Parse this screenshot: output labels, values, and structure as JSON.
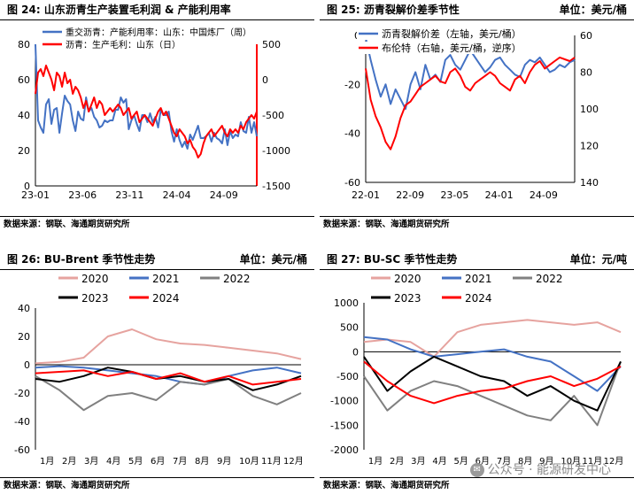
{
  "watermark": "公众号 · 能源研发中心",
  "panels": [
    {
      "label": "图 24:  山东沥青生产装置毛利润 & 产能利用率",
      "unit": "",
      "source": "数据来源：钢联、海通期货研究所",
      "chart_data": {
        "type": "line",
        "xticks": [
          "23-01",
          "23-06",
          "23-11",
          "24-04",
          "24-09"
        ],
        "ylim": [
          0,
          80
        ],
        "y2lim": [
          -1500,
          500
        ],
        "yticks": [
          0,
          20,
          40,
          60,
          80
        ],
        "y2ticks": [
          500,
          0,
          -500,
          -1000,
          -1500
        ],
        "legend_position": "top-left",
        "series": [
          {
            "name": "重交沥青：产能利用率：山东：中国炼厂（周）",
            "axis": "left",
            "color": "#4472c4",
            "values": [
              80,
              37,
              33,
              30,
              46,
              49,
              35,
              43,
              44,
              30,
              41,
              51,
              48,
              46,
              37,
              31,
              42,
              38,
              37,
              50,
              42,
              44,
              39,
              37,
              33,
              34,
              37,
              36,
              37,
              37,
              43,
              43,
              50,
              47,
              49,
              32,
              37,
              40,
              35,
              31,
              40,
              40,
              36,
              41,
              36,
              39,
              33,
              43,
              40,
              40,
              42,
              31,
              25,
              32,
              26,
              22,
              25,
              21,
              29,
              26,
              30,
              34,
              27,
              27,
              28,
              30,
              25,
              30,
              27,
              26,
              24,
              32,
              23,
              31,
              27,
              29,
              28,
              36,
              31,
              30,
              39,
              30,
              36,
              28
            ]
          },
          {
            "name": "沥青：生产毛利：山东（日）",
            "axis": "right",
            "color": "#ff0000",
            "values": [
              -200,
              100,
              150,
              50,
              200,
              100,
              0,
              -150,
              100,
              50,
              -100,
              100,
              -50,
              0,
              -200,
              -100,
              -150,
              -250,
              -400,
              -300,
              -450,
              -350,
              -250,
              -400,
              -300,
              -350,
              -500,
              -450,
              -400,
              -450,
              -400,
              -350,
              -400,
              -500,
              -450,
              -400,
              -550,
              -500,
              -450,
              -600,
              -550,
              -500,
              -550,
              -600,
              -650,
              -550,
              -450,
              -400,
              -500,
              -450,
              -550,
              -650,
              -750,
              -800,
              -700,
              -750,
              -800,
              -900,
              -850,
              -950,
              -1000,
              -1100,
              -1050,
              -900,
              -800,
              -750,
              -700,
              -800,
              -750,
              -700,
              -650,
              -750,
              -800,
              -700,
              -750,
              -700,
              -750,
              -650,
              -700,
              -600,
              -550,
              -500,
              -550,
              -450
            ]
          }
        ]
      }
    },
    {
      "label": "图 25:   沥青裂解价差季节性",
      "unit": "单位：美元/桶",
      "source": "数据来源：钢联、海通期货研究所",
      "chart_data": {
        "type": "line",
        "xticks": [
          "22-01",
          "22-09",
          "23-05",
          "24-01",
          "24-09"
        ],
        "ylim": [
          -60,
          0
        ],
        "yticks": [
          0,
          -20,
          -40,
          -60
        ],
        "y2lim": [
          140,
          60
        ],
        "y2ticks": [
          60,
          80,
          100,
          120,
          140
        ],
        "y2_reversed": true,
        "legend_position": "top-left",
        "series": [
          {
            "name": "沥青裂解价差（左轴，美元/桶）",
            "axis": "left",
            "color": "#4472c4",
            "values": [
              -1,
              -10,
              -18,
              -25,
              -20,
              -28,
              -22,
              -26,
              -30,
              -20,
              -15,
              -22,
              -12,
              -18,
              -16,
              -19,
              -10,
              -8,
              -12,
              -14,
              -10,
              -6,
              -9,
              -12,
              -15,
              -13,
              -10,
              -9,
              -12,
              -14,
              -16,
              -17,
              -12,
              -10,
              -11,
              -9,
              -12,
              -15,
              -14,
              -12,
              -13,
              -11,
              -10
            ]
          },
          {
            "name": "布伦特（右轴，美元/桶，逆序）",
            "axis": "right",
            "color": "#ff0000",
            "values": [
              78,
              95,
              104,
              110,
              118,
              122,
              115,
              105,
              98,
              96,
              92,
              88,
              86,
              84,
              82,
              85,
              86,
              80,
              78,
              82,
              88,
              90,
              86,
              84,
              82,
              80,
              82,
              86,
              88,
              90,
              84,
              82,
              86,
              80,
              76,
              74,
              78,
              76,
              74,
              72,
              73,
              74,
              72
            ]
          }
        ]
      }
    },
    {
      "label": "图 26:   BU-Brent 季节性走势",
      "unit": "单位：美元/桶",
      "source": "数据来源：钢联、海通期货研究所",
      "chart_data": {
        "type": "line",
        "categories": [
          "1月",
          "2月",
          "3月",
          "4月",
          "5月",
          "6月",
          "7月",
          "8月",
          "9月",
          "10月",
          "11月",
          "12月"
        ],
        "ylim": [
          -60,
          40
        ],
        "yticks": [
          40,
          20,
          0,
          -20,
          -40,
          -60
        ],
        "legend_position": "top",
        "series": [
          {
            "name": "2020",
            "color": "#e6a39f",
            "values": [
              1,
              2,
              5,
              20,
              25,
              18,
              15,
              14,
              12,
              10,
              8,
              4
            ]
          },
          {
            "name": "2021",
            "color": "#4472c4",
            "values": [
              -2,
              -1,
              -2,
              -4,
              -6,
              -8,
              -12,
              -14,
              -8,
              -4,
              -2,
              -6
            ]
          },
          {
            "name": "2022",
            "color": "#808080",
            "values": [
              -8,
              -18,
              -32,
              -22,
              -20,
              -25,
              -12,
              -14,
              -10,
              -22,
              -28,
              -20
            ]
          },
          {
            "name": "2023",
            "color": "#000000",
            "values": [
              -10,
              -12,
              -8,
              -2,
              -5,
              -10,
              -8,
              -12,
              -10,
              -18,
              -14,
              -8
            ]
          },
          {
            "name": "2024",
            "color": "#ff0000",
            "values": [
              -6,
              -5,
              -4,
              -8,
              -5,
              -10,
              -6,
              -12,
              -8,
              -14,
              -12,
              -10
            ]
          }
        ]
      }
    },
    {
      "label": "图 27:   BU-SC 季节性走势",
      "unit": "单位：元/吨",
      "source": "数据来源：钢联、海通期货研究所",
      "chart_data": {
        "type": "line",
        "categories": [
          "1月",
          "2月",
          "3月",
          "4月",
          "5月",
          "6月",
          "7月",
          "8月",
          "9月",
          "10月",
          "11月",
          "12月"
        ],
        "ylim": [
          -2000,
          1000
        ],
        "yticks": [
          1000,
          500,
          0,
          -500,
          -1000,
          -1500,
          -2000
        ],
        "legend_position": "top",
        "series": [
          {
            "name": "2020",
            "color": "#e6a39f",
            "values": [
              200,
              250,
              200,
              -100,
              400,
              550,
              600,
              650,
              600,
              550,
              600,
              400
            ]
          },
          {
            "name": "2021",
            "color": "#4472c4",
            "values": [
              300,
              250,
              50,
              -100,
              -50,
              0,
              50,
              -100,
              -200,
              -500,
              -800,
              -300
            ]
          },
          {
            "name": "2022",
            "color": "#808080",
            "values": [
              -500,
              -1200,
              -800,
              -600,
              -700,
              -900,
              -1100,
              -1300,
              -1400,
              -900,
              -1500,
              -200
            ]
          },
          {
            "name": "2023",
            "color": "#000000",
            "values": [
              -100,
              -800,
              -400,
              -100,
              -300,
              -500,
              -600,
              -900,
              -700,
              -1000,
              -1200,
              -200
            ]
          },
          {
            "name": "2024",
            "color": "#ff0000",
            "values": [
              -200,
              -600,
              -900,
              -1050,
              -900,
              -800,
              -750,
              -600,
              -500,
              -700,
              -550,
              -300
            ]
          }
        ]
      }
    }
  ]
}
